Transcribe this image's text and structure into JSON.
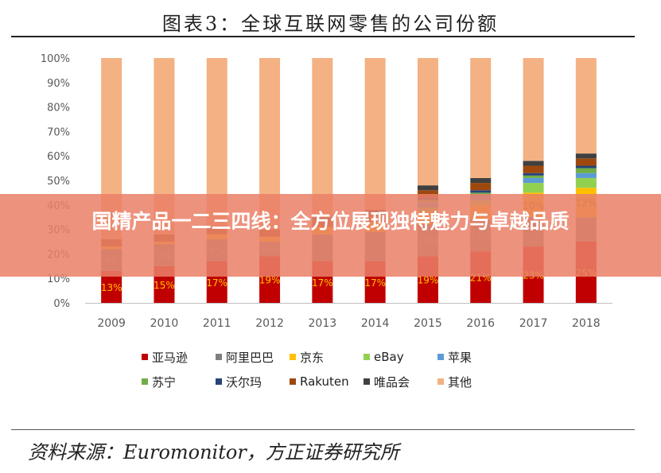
{
  "figure": {
    "title": "图表3：全球互联网零售的公司份额",
    "source": "资料来源：Euromonitor，方正证券研究所"
  },
  "banner": {
    "text": "国精产品一二三四线：全方位展现独特魅力与卓越品质"
  },
  "chart_data": {
    "type": "bar",
    "stacked": true,
    "categories": [
      "2009",
      "2010",
      "2011",
      "2012",
      "2013",
      "2014",
      "2015",
      "2016",
      "2017",
      "2018"
    ],
    "yticks": [
      "0%",
      "10%",
      "20%",
      "30%",
      "40%",
      "50%",
      "60%",
      "70%",
      "80%",
      "90%",
      "100%"
    ],
    "ylim": [
      0,
      100
    ],
    "legend_position": "bottom",
    "series": [
      {
        "name": "亚马逊",
        "color": "#c00000",
        "values": [
          13,
          15,
          17,
          19,
          17,
          17,
          19,
          21,
          23,
          25
        ]
      },
      {
        "name": "阿里巴巴",
        "color": "#7f7f7f",
        "values": [
          9,
          9,
          9,
          6,
          11,
          12,
          13,
          13,
          12,
          10
        ]
      },
      {
        "name": "京东",
        "color": "#ffc000",
        "values": [
          1,
          1,
          2,
          2,
          3,
          4,
          5,
          6,
          10,
          12
        ]
      },
      {
        "name": "eBay",
        "color": "#92d050",
        "values": [
          0,
          0,
          0,
          0,
          0,
          0,
          2,
          2,
          4,
          4
        ]
      },
      {
        "name": "苹果",
        "color": "#5b9bd5",
        "values": [
          0,
          0,
          0,
          0,
          0,
          0,
          2,
          2,
          2,
          2
        ]
      },
      {
        "name": "苏宁",
        "color": "#70ad47",
        "values": [
          0,
          0,
          0,
          0,
          0,
          0,
          1,
          1,
          1,
          2
        ]
      },
      {
        "name": "沃尔玛",
        "color": "#264478",
        "values": [
          0,
          0,
          0,
          0,
          0,
          0,
          1,
          1,
          1,
          1
        ]
      },
      {
        "name": "Rakuten",
        "color": "#9e480e",
        "values": [
          3,
          3,
          3,
          3,
          3,
          3,
          3,
          3,
          3,
          3
        ]
      },
      {
        "name": "唯品会",
        "color": "#404040",
        "values": [
          0,
          0,
          0,
          0,
          1,
          2,
          2,
          2,
          2,
          2
        ]
      },
      {
        "name": "其他",
        "color": "#f4b183",
        "values": [
          74,
          72,
          69,
          70,
          65,
          62,
          52,
          49,
          42,
          39
        ]
      }
    ],
    "data_labels": [
      {
        "series": "亚马逊",
        "labels": [
          "13%",
          "15%",
          "17%",
          "19%",
          "17%",
          "17%",
          "19%",
          "21%",
          "23%",
          "25%"
        ]
      },
      {
        "series": "阿里巴巴",
        "labels": [
          "9%",
          "9%",
          "9%",
          "6%",
          "",
          "",
          "13%",
          "13%",
          "",
          ""
        ]
      },
      {
        "series": "京东",
        "labels": [
          "",
          "",
          "",
          "",
          "",
          "",
          "",
          "",
          "10%",
          "12%"
        ]
      }
    ]
  }
}
